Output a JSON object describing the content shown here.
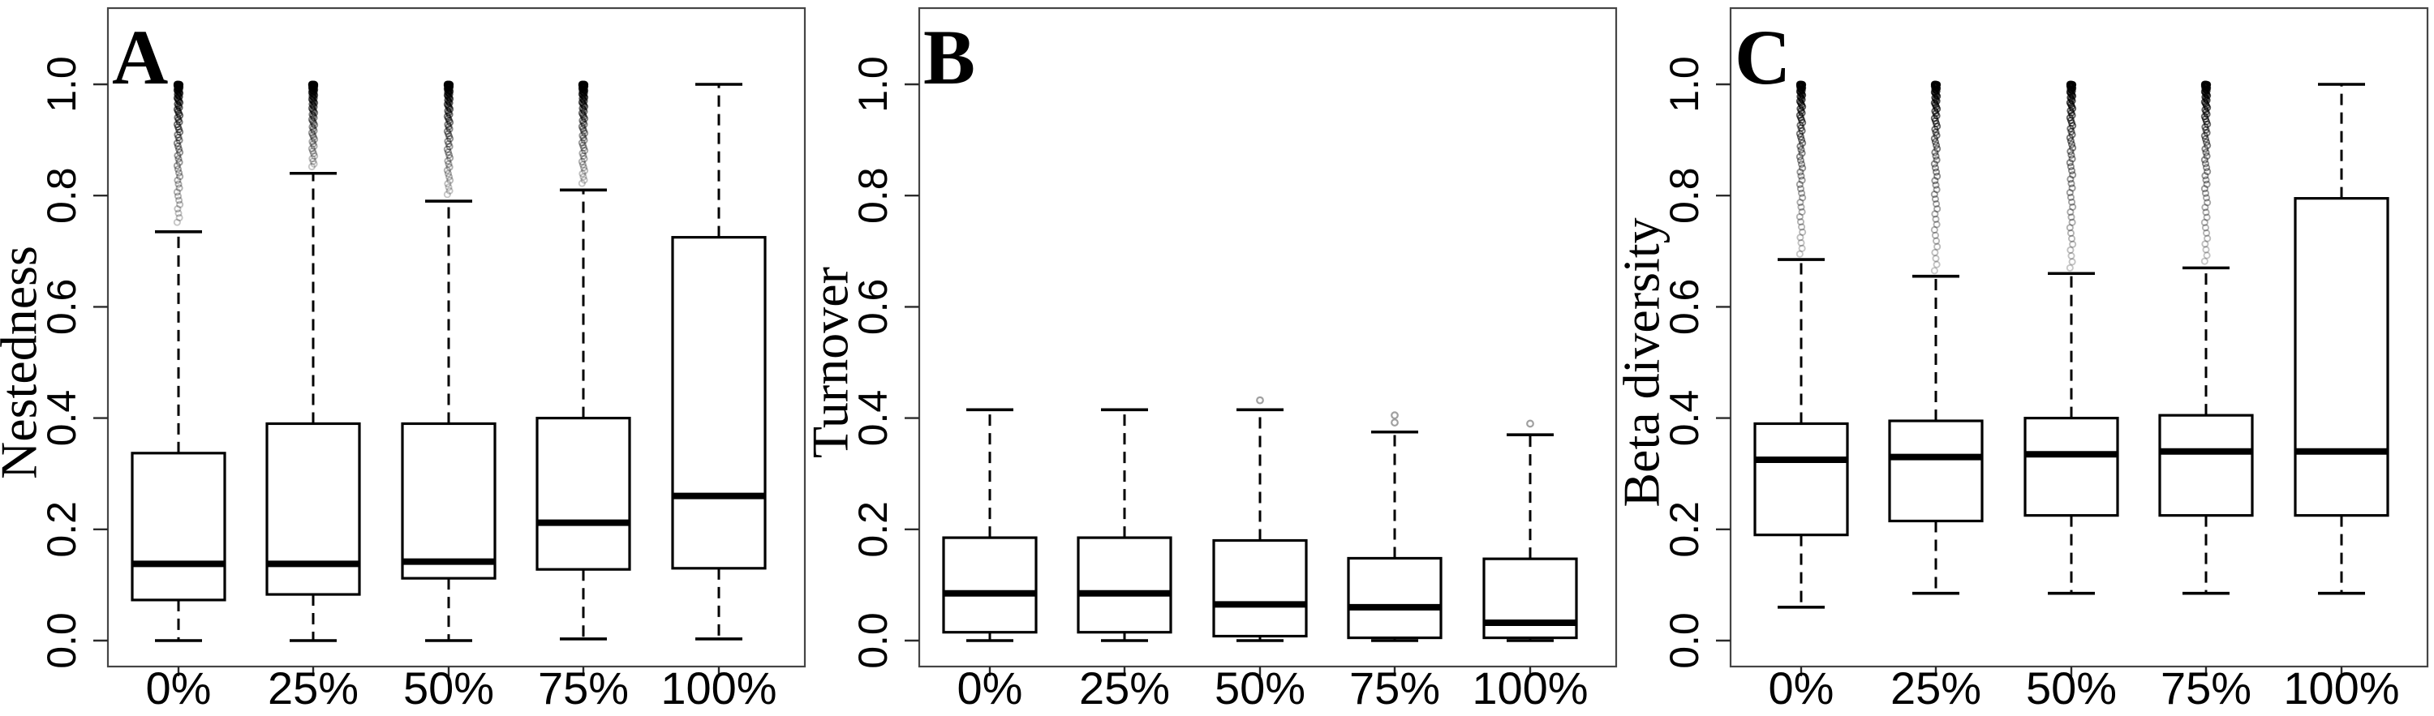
{
  "figure": {
    "background": "#ffffff",
    "line_color": "#000000",
    "frame_color": "#454545",
    "tick_color": "#2b2b2b",
    "light_outlier_color": "#8f8f8f"
  },
  "chart_data": [
    {
      "type": "boxplot",
      "panel_label": "A",
      "ylabel": "Nestedness",
      "xlabel": "",
      "categories": [
        "0%",
        "25%",
        "50%",
        "75%",
        "100%"
      ],
      "ylim": [
        0.0,
        1.0
      ],
      "ytick_values": [
        0.0,
        0.2,
        0.4,
        0.6,
        0.8,
        1.0
      ],
      "ytick_labels": [
        "0.0",
        "0.2",
        "0.4",
        "0.6",
        "0.8",
        "1.0"
      ],
      "grid": false,
      "legend": null,
      "boxes": [
        {
          "category": "0%",
          "whisker_low": 0.0,
          "q1": 0.073,
          "median": 0.138,
          "q3": 0.337,
          "whisker_high": 0.735,
          "outlier_band": [
            0.752,
            1.0
          ]
        },
        {
          "category": "25%",
          "whisker_low": 0.0,
          "q1": 0.083,
          "median": 0.138,
          "q3": 0.39,
          "whisker_high": 0.84,
          "outlier_band": [
            0.852,
            1.0
          ]
        },
        {
          "category": "50%",
          "whisker_low": 0.0,
          "q1": 0.112,
          "median": 0.142,
          "q3": 0.39,
          "whisker_high": 0.79,
          "outlier_band": [
            0.802,
            1.0
          ]
        },
        {
          "category": "75%",
          "whisker_low": 0.003,
          "q1": 0.128,
          "median": 0.212,
          "q3": 0.4,
          "whisker_high": 0.81,
          "outlier_band": [
            0.822,
            1.0
          ]
        },
        {
          "category": "100%",
          "whisker_low": 0.003,
          "q1": 0.13,
          "median": 0.26,
          "q3": 0.725,
          "whisker_high": 1.0
        }
      ]
    },
    {
      "type": "boxplot",
      "panel_label": "B",
      "ylabel": "Turnover",
      "xlabel": "",
      "categories": [
        "0%",
        "25%",
        "50%",
        "75%",
        "100%"
      ],
      "ylim": [
        0.0,
        1.0
      ],
      "ytick_values": [
        0.0,
        0.2,
        0.4,
        0.6,
        0.8,
        1.0
      ],
      "ytick_labels": [
        "0.0",
        "0.2",
        "0.4",
        "0.6",
        "0.8",
        "1.0"
      ],
      "grid": false,
      "legend": null,
      "boxes": [
        {
          "category": "0%",
          "whisker_low": 0.0,
          "q1": 0.015,
          "median": 0.085,
          "q3": 0.185,
          "whisker_high": 0.415
        },
        {
          "category": "25%",
          "whisker_low": 0.0,
          "q1": 0.015,
          "median": 0.085,
          "q3": 0.185,
          "whisker_high": 0.415
        },
        {
          "category": "50%",
          "whisker_low": 0.0,
          "q1": 0.008,
          "median": 0.065,
          "q3": 0.18,
          "whisker_high": 0.415,
          "outlier_points": [
            0.432
          ]
        },
        {
          "category": "75%",
          "whisker_low": 0.0,
          "q1": 0.005,
          "median": 0.06,
          "q3": 0.148,
          "whisker_high": 0.375,
          "outlier_points": [
            0.392,
            0.405
          ]
        },
        {
          "category": "100%",
          "whisker_low": 0.0,
          "q1": 0.005,
          "median": 0.032,
          "q3": 0.147,
          "whisker_high": 0.37,
          "outlier_points": [
            0.39
          ]
        }
      ]
    },
    {
      "type": "boxplot",
      "panel_label": "C",
      "ylabel": "Beta diversity",
      "xlabel": "",
      "categories": [
        "0%",
        "25%",
        "50%",
        "75%",
        "100%"
      ],
      "ylim": [
        0.0,
        1.0
      ],
      "ytick_values": [
        0.0,
        0.2,
        0.4,
        0.6,
        0.8,
        1.0
      ],
      "ytick_labels": [
        "0.0",
        "0.2",
        "0.4",
        "0.6",
        "0.8",
        "1.0"
      ],
      "grid": false,
      "legend": null,
      "boxes": [
        {
          "category": "0%",
          "whisker_low": 0.06,
          "q1": 0.19,
          "median": 0.325,
          "q3": 0.39,
          "whisker_high": 0.685,
          "outlier_band": [
            0.695,
            1.0
          ]
        },
        {
          "category": "25%",
          "whisker_low": 0.085,
          "q1": 0.215,
          "median": 0.33,
          "q3": 0.395,
          "whisker_high": 0.655,
          "outlier_band": [
            0.665,
            1.0
          ]
        },
        {
          "category": "50%",
          "whisker_low": 0.085,
          "q1": 0.225,
          "median": 0.335,
          "q3": 0.4,
          "whisker_high": 0.66,
          "outlier_band": [
            0.67,
            1.0
          ]
        },
        {
          "category": "75%",
          "whisker_low": 0.085,
          "q1": 0.225,
          "median": 0.34,
          "q3": 0.405,
          "whisker_high": 0.67,
          "outlier_band": [
            0.682,
            1.0
          ]
        },
        {
          "category": "100%",
          "whisker_low": 0.085,
          "q1": 0.225,
          "median": 0.34,
          "q3": 0.795,
          "whisker_high": 1.0
        }
      ]
    }
  ]
}
